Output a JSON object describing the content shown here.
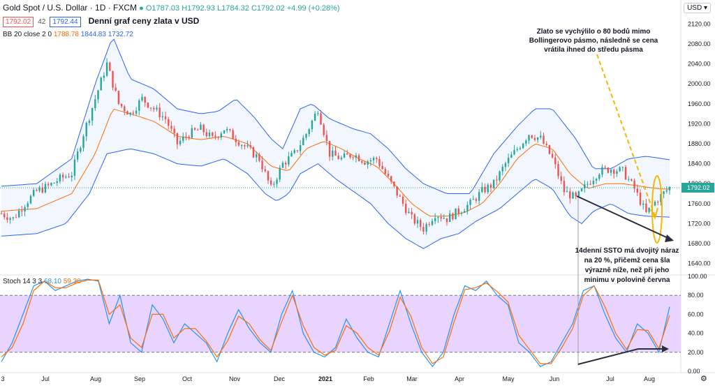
{
  "header": {
    "symbol": "Gold Spot / U.S. Dollar · 1D · FXCM",
    "ohlc": {
      "o": "O1787.03",
      "h": "H1792.93",
      "l": "L1784.32",
      "c": "C1792.02",
      "chg": "+4.99 (+0.28%)"
    },
    "bid": "1792.02",
    "spread": "42",
    "ask": "1792.44",
    "title": "Denní graf ceny zlata v USD",
    "bb_label": "BB 20 close 2 0",
    "bb_vals": [
      "1788.78",
      "1844.83",
      "1732.72"
    ],
    "stoch_label": "Stoch 14 3 3",
    "stoch_vals": [
      "68.10",
      "59.30"
    ],
    "currency": "USD"
  },
  "colors": {
    "up": "#26a69a",
    "down": "#ef5350",
    "bb_band": "#2962ff",
    "bb_basis": "#ff6d00",
    "k": "#2196f3",
    "d": "#ff6d00",
    "stoch_bg": "#e3c8ff",
    "annot_yellow": "#f5b700",
    "annot_dark": "#2a2e39"
  },
  "annotations": {
    "top": [
      "Zlato se vychýlilo o 80 bodů mimo",
      "Bollingerovo pásmo, následně se  cena",
      "vrátila ihned do středu pásma"
    ],
    "bottom": [
      "14denní SSTO má dvojitý náraz",
      "na 20 %, přičemž cena šla",
      "výrazně níže, než při jeho",
      "minimu v polovině června"
    ]
  },
  "chart_data": [
    {
      "type": "candlestick",
      "title": "Denní graf ceny zlata v USD",
      "ylim": [
        1620,
        2140
      ],
      "y_ticks": [
        "2120.00",
        "2080.00",
        "2040.00",
        "2000.00",
        "1960.00",
        "1920.00",
        "1880.00",
        "1840.00",
        "1800.00",
        "1760.00",
        "1720.00",
        "1680.00",
        "1640.00"
      ],
      "last_price": "1792.02",
      "x_ticks": [
        "3",
        "Jul",
        "Aug",
        "Sep",
        "Oct",
        "Nov",
        "Dec",
        "2021",
        "Feb",
        "Mar",
        "Apr",
        "May",
        "Jun",
        "Jul",
        "Aug"
      ],
      "close_path": [
        [
          0,
          1740
        ],
        [
          10,
          1730
        ],
        [
          20,
          1760
        ],
        [
          30,
          1785
        ],
        [
          40,
          1795
        ],
        [
          50,
          1810
        ],
        [
          60,
          1820
        ],
        [
          70,
          1900
        ],
        [
          80,
          1970
        ],
        [
          90,
          2040
        ],
        [
          100,
          1960
        ],
        [
          110,
          1940
        ],
        [
          120,
          1970
        ],
        [
          130,
          1950
        ],
        [
          140,
          1930
        ],
        [
          150,
          1880
        ],
        [
          160,
          1900
        ],
        [
          170,
          1910
        ],
        [
          180,
          1890
        ],
        [
          190,
          1910
        ],
        [
          200,
          1890
        ],
        [
          210,
          1870
        ],
        [
          220,
          1850
        ],
        [
          230,
          1790
        ],
        [
          240,
          1840
        ],
        [
          250,
          1860
        ],
        [
          260,
          1900
        ],
        [
          270,
          1950
        ],
        [
          280,
          1860
        ],
        [
          290,
          1850
        ],
        [
          300,
          1860
        ],
        [
          310,
          1845
        ],
        [
          320,
          1850
        ],
        [
          330,
          1810
        ],
        [
          340,
          1770
        ],
        [
          350,
          1730
        ],
        [
          360,
          1710
        ],
        [
          370,
          1740
        ],
        [
          380,
          1730
        ],
        [
          390,
          1745
        ],
        [
          400,
          1760
        ],
        [
          410,
          1785
        ],
        [
          420,
          1800
        ],
        [
          430,
          1840
        ],
        [
          440,
          1870
        ],
        [
          450,
          1900
        ],
        [
          460,
          1890
        ],
        [
          470,
          1850
        ],
        [
          480,
          1785
        ],
        [
          490,
          1770
        ],
        [
          500,
          1800
        ],
        [
          510,
          1825
        ],
        [
          520,
          1830
        ],
        [
          530,
          1825
        ],
        [
          540,
          1790
        ],
        [
          550,
          1740
        ],
        [
          560,
          1770
        ],
        [
          570,
          1792
        ]
      ],
      "bb_upper_path": [
        [
          0,
          1795
        ],
        [
          30,
          1800
        ],
        [
          60,
          1850
        ],
        [
          80,
          2000
        ],
        [
          95,
          2095
        ],
        [
          110,
          2010
        ],
        [
          130,
          1990
        ],
        [
          150,
          1950
        ],
        [
          170,
          1940
        ],
        [
          185,
          1945
        ],
        [
          200,
          1970
        ],
        [
          215,
          1935
        ],
        [
          230,
          1890
        ],
        [
          240,
          1870
        ],
        [
          255,
          1950
        ],
        [
          265,
          1960
        ],
        [
          280,
          1930
        ],
        [
          300,
          1910
        ],
        [
          315,
          1900
        ],
        [
          330,
          1870
        ],
        [
          345,
          1830
        ],
        [
          360,
          1800
        ],
        [
          380,
          1780
        ],
        [
          400,
          1780
        ],
        [
          420,
          1860
        ],
        [
          440,
          1915
        ],
        [
          455,
          1950
        ],
        [
          470,
          1950
        ],
        [
          490,
          1890
        ],
        [
          505,
          1830
        ],
        [
          520,
          1830
        ],
        [
          535,
          1850
        ],
        [
          550,
          1855
        ],
        [
          570,
          1848
        ]
      ],
      "bb_lower_path": [
        [
          0,
          1695
        ],
        [
          30,
          1700
        ],
        [
          55,
          1720
        ],
        [
          75,
          1780
        ],
        [
          90,
          1860
        ],
        [
          110,
          1870
        ],
        [
          130,
          1860
        ],
        [
          150,
          1840
        ],
        [
          170,
          1835
        ],
        [
          190,
          1850
        ],
        [
          210,
          1820
        ],
        [
          225,
          1780
        ],
        [
          235,
          1765
        ],
        [
          245,
          1780
        ],
        [
          255,
          1820
        ],
        [
          270,
          1840
        ],
        [
          285,
          1810
        ],
        [
          300,
          1785
        ],
        [
          315,
          1760
        ],
        [
          330,
          1720
        ],
        [
          345,
          1690
        ],
        [
          360,
          1670
        ],
        [
          375,
          1690
        ],
        [
          390,
          1700
        ],
        [
          405,
          1725
        ],
        [
          425,
          1750
        ],
        [
          440,
          1780
        ],
        [
          455,
          1810
        ],
        [
          470,
          1790
        ],
        [
          485,
          1735
        ],
        [
          495,
          1720
        ],
        [
          505,
          1745
        ],
        [
          520,
          1760
        ],
        [
          535,
          1740
        ],
        [
          550,
          1735
        ],
        [
          570,
          1733
        ]
      ],
      "bb_basis_path": [
        [
          0,
          1745
        ],
        [
          30,
          1750
        ],
        [
          60,
          1780
        ],
        [
          80,
          1860
        ],
        [
          95,
          1950
        ],
        [
          110,
          1940
        ],
        [
          130,
          1925
        ],
        [
          150,
          1895
        ],
        [
          170,
          1888
        ],
        [
          190,
          1895
        ],
        [
          210,
          1880
        ],
        [
          230,
          1835
        ],
        [
          245,
          1825
        ],
        [
          260,
          1870
        ],
        [
          275,
          1885
        ],
        [
          290,
          1870
        ],
        [
          305,
          1850
        ],
        [
          320,
          1835
        ],
        [
          335,
          1800
        ],
        [
          350,
          1760
        ],
        [
          365,
          1735
        ],
        [
          380,
          1735
        ],
        [
          395,
          1742
        ],
        [
          410,
          1760
        ],
        [
          425,
          1800
        ],
        [
          440,
          1850
        ],
        [
          455,
          1880
        ],
        [
          470,
          1870
        ],
        [
          485,
          1820
        ],
        [
          500,
          1790
        ],
        [
          515,
          1800
        ],
        [
          530,
          1800
        ],
        [
          545,
          1795
        ],
        [
          560,
          1790
        ],
        [
          570,
          1789
        ]
      ]
    },
    {
      "type": "line",
      "title": "Stoch 14 3 3",
      "ylim": [
        0,
        100
      ],
      "y_ticks": [
        "100.00",
        "80.00",
        "60.00",
        "40.00",
        "20.00",
        "0.00"
      ],
      "band": [
        20,
        80
      ],
      "series": [
        {
          "name": "68.10",
          "values": [
            10,
            30,
            60,
            90,
            95,
            85,
            90,
            95,
            97,
            95,
            50,
            80,
            30,
            20,
            70,
            55,
            30,
            50,
            40,
            30,
            10,
            40,
            65,
            45,
            30,
            20,
            60,
            85,
            40,
            20,
            15,
            25,
            55,
            35,
            20,
            15,
            50,
            85,
            50,
            20,
            5,
            20,
            60,
            90,
            85,
            95,
            80,
            70,
            30,
            20,
            5,
            10,
            30,
            50,
            85,
            90,
            60,
            35,
            20,
            50,
            40,
            20,
            68
          ]
        },
        {
          "name": "59.30",
          "values": [
            15,
            25,
            50,
            85,
            95,
            88,
            88,
            93,
            96,
            96,
            60,
            70,
            35,
            25,
            60,
            60,
            35,
            45,
            45,
            32,
            15,
            32,
            58,
            50,
            33,
            22,
            52,
            80,
            48,
            25,
            17,
            22,
            48,
            40,
            25,
            17,
            42,
            78,
            58,
            25,
            8,
            15,
            52,
            86,
            88,
            93,
            84,
            73,
            38,
            23,
            8,
            8,
            25,
            45,
            80,
            90,
            68,
            40,
            23,
            44,
            43,
            24,
            59
          ]
        }
      ]
    }
  ]
}
